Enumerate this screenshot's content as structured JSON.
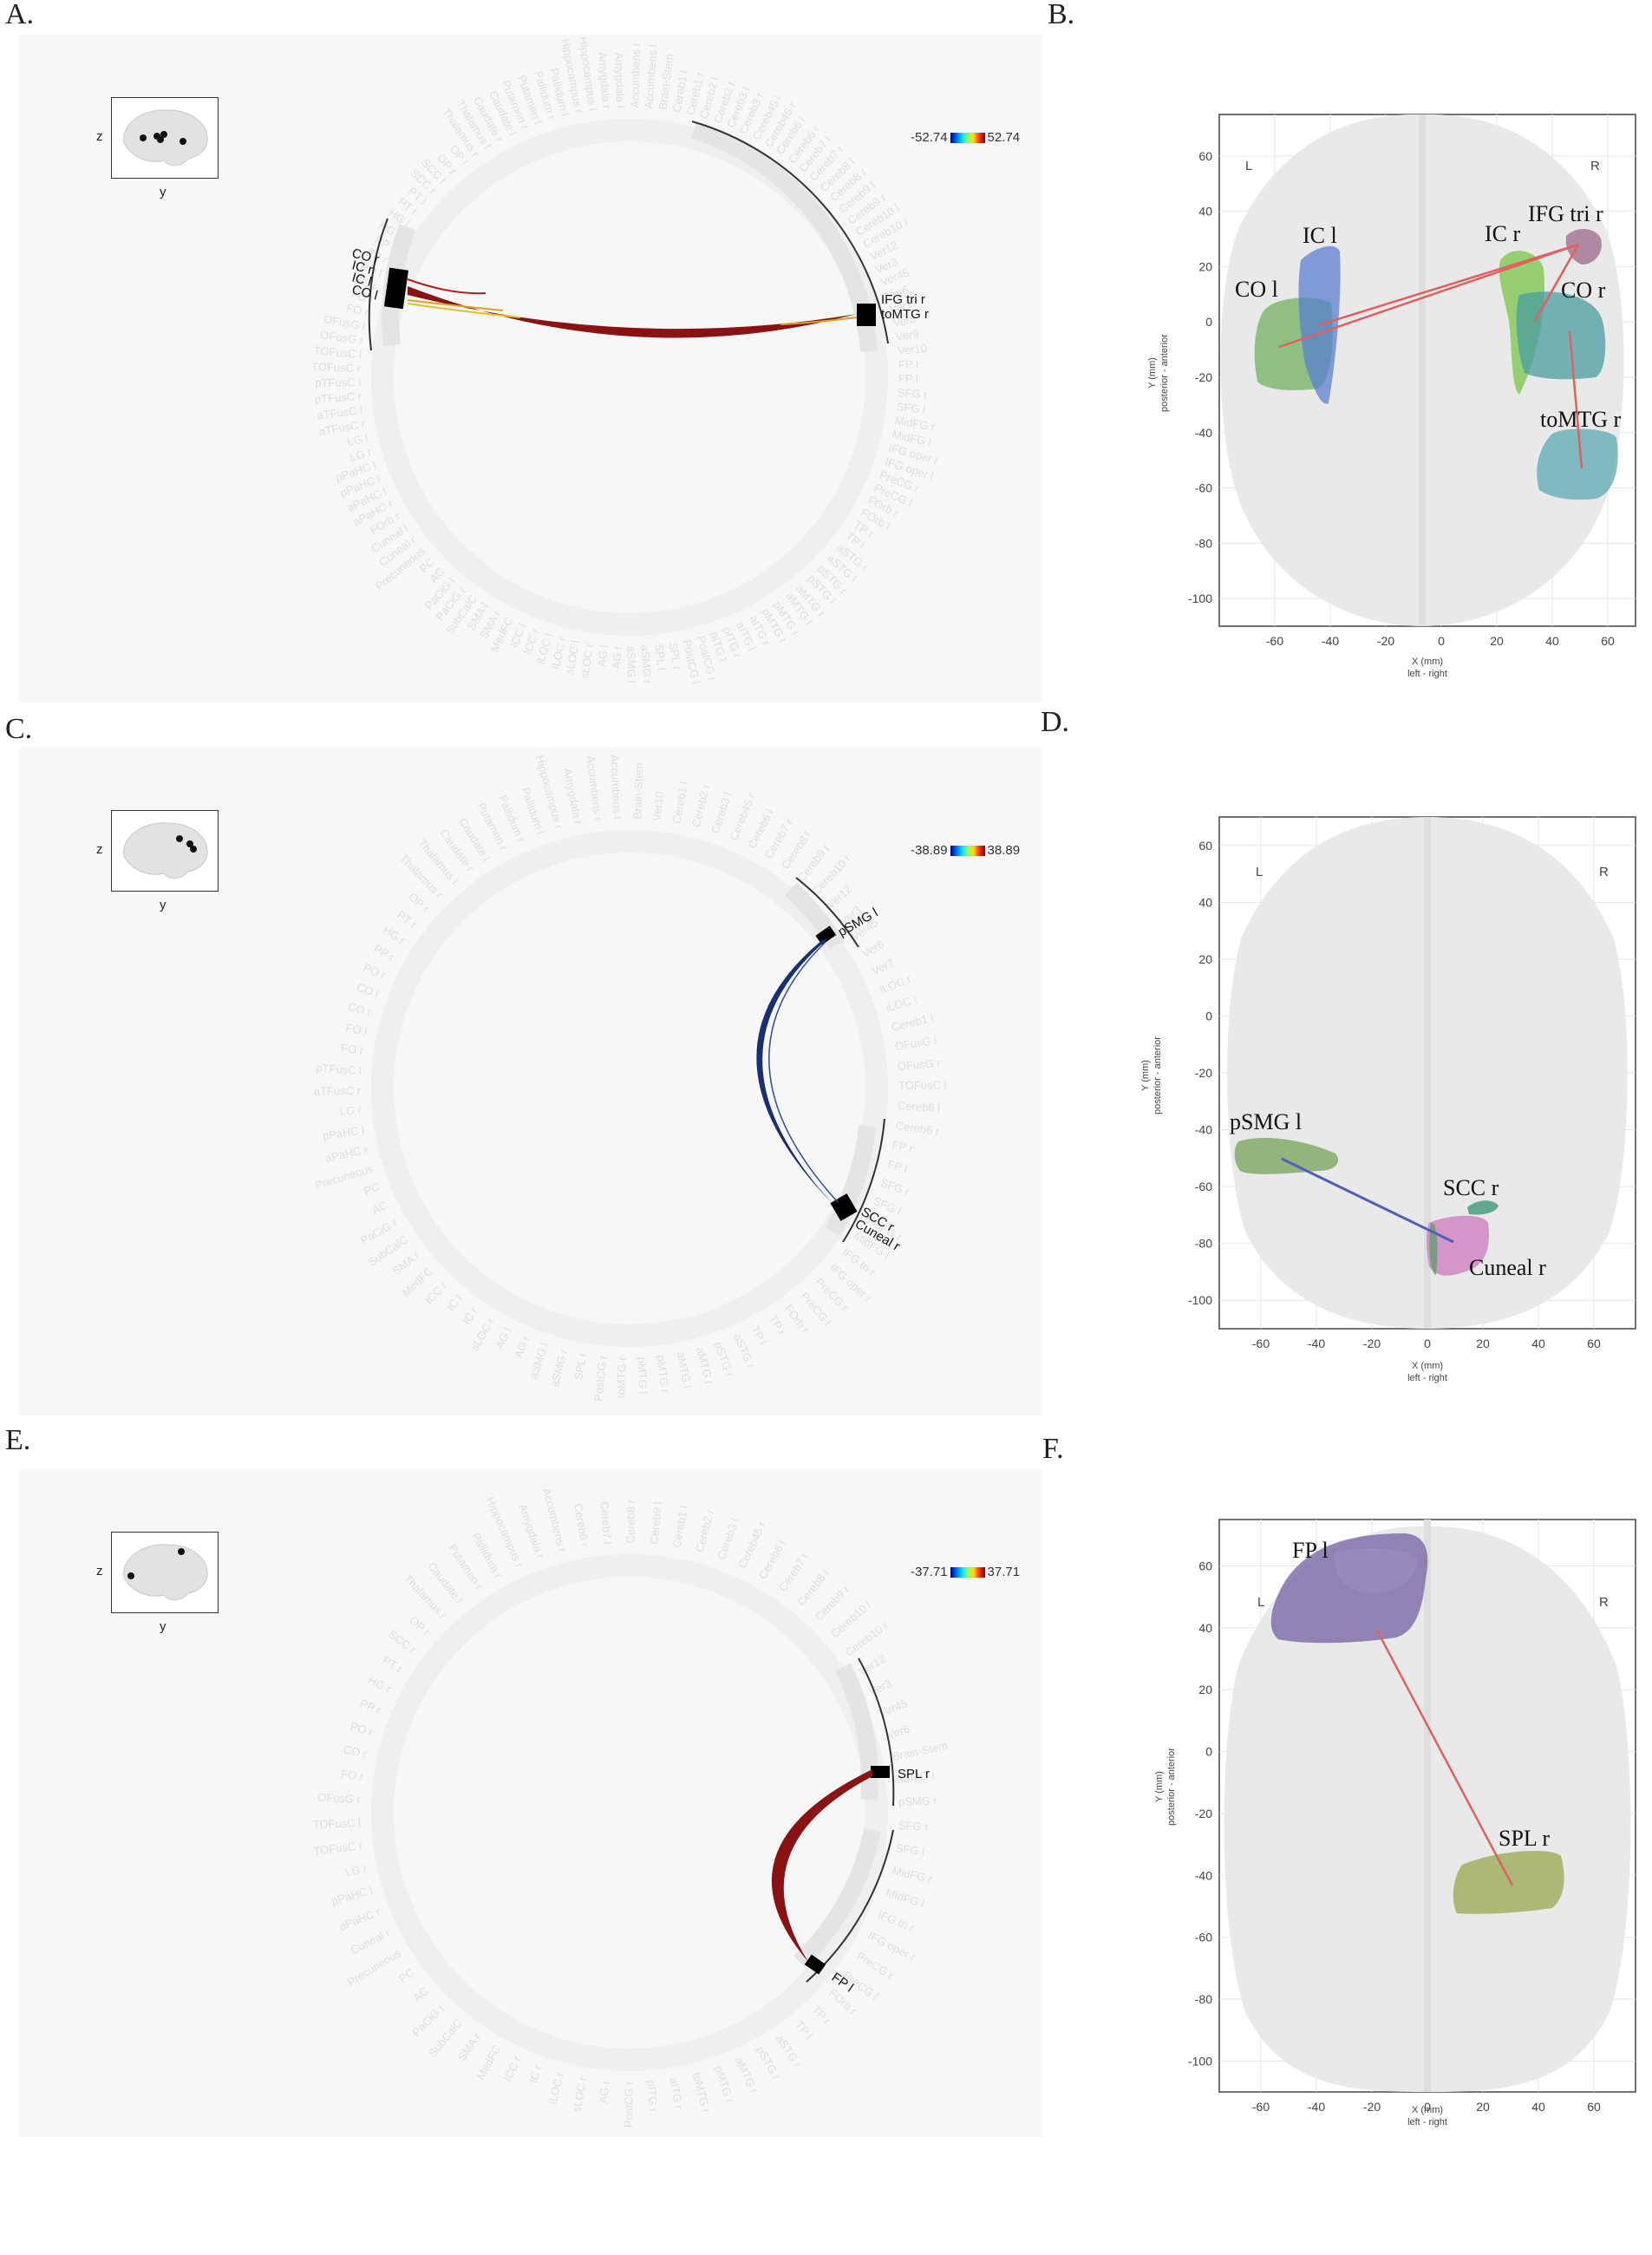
{
  "panels": [
    {
      "id": "A",
      "label": "A.",
      "colorbar": {
        "min": "-52.74",
        "max": "52.74"
      },
      "inset": {
        "z": "z",
        "y": "y"
      },
      "circle_labels_left": [
        "CO r",
        "IC r",
        "IC l",
        "CO l"
      ],
      "circle_labels_right": [
        "IFG tri r",
        "toMTG r"
      ],
      "link_color": "#8b1212",
      "ghost_labels": [
        "Cereb1 l",
        "Cereb1 r",
        "Cereb2 l",
        "Cereb2 r",
        "Cereb3 l",
        "Cereb3 r",
        "Cereb45 l",
        "Cereb45 r",
        "Cereb6 l",
        "Cereb6 r",
        "Cereb7 l",
        "Cereb7 r",
        "Cereb8 l",
        "Cereb8 r",
        "Cereb9 l",
        "Cereb9 r",
        "Cereb10 l",
        "Cereb10 r",
        "Ver12",
        "Ver3",
        "Ver45",
        "Ver6",
        "Ver7",
        "Ver8",
        "Ver9",
        "Ver10",
        "FP r",
        "FP l",
        "SFG r",
        "SFG l",
        "MidFG r",
        "MidFG l",
        "IFG oper r",
        "IFG oper l",
        "PreCG r",
        "PreCG l",
        "FOrb r",
        "FOrb l",
        "TP r",
        "TP l",
        "aSTG r",
        "aSTG l",
        "pSTG r",
        "pSTG l",
        "aMTG r",
        "aMTG l",
        "pMTG r",
        "pMTG l",
        "aITG r",
        "aITG l",
        "pITG r",
        "pITG l",
        "PostCG r",
        "PostCG l",
        "SPL r",
        "SPL l",
        "aSMG r",
        "aSMG l",
        "AG r",
        "AG l",
        "sLOC r",
        "sLOC l",
        "iLOC r",
        "iLOC l",
        "ICC r",
        "ICC l",
        "MedFC",
        "SMA r",
        "SMA l",
        "SubCalC",
        "PaCiG r",
        "PaCiG l",
        "AC",
        "PC",
        "Precuneous",
        "Cuneal r",
        "Cuneal l",
        "FOrb r",
        "aPaHC r",
        "aPaHC l",
        "pPaHC r",
        "pPaHC l",
        "LG r",
        "LG l",
        "aTFusC r",
        "aTFusC l",
        "pTFusC r",
        "pTFusC l",
        "TOFusC r",
        "TOFusC l",
        "OFusG r",
        "OFusG l",
        "FO r",
        "FO l",
        "PO r",
        "PO l",
        "PP r",
        "PP l",
        "HG r",
        "HG l",
        "PT r",
        "PT l",
        "SCC r",
        "SCC l",
        "OP r",
        "OP l",
        "Thalamus r",
        "Thalamus l",
        "Caudate r",
        "Caudate l",
        "Putamen r",
        "Putamen l",
        "Pallidum r",
        "Pallidum l",
        "Hippocampus r",
        "Hippocampus l",
        "Amygdala r",
        "Amygdala l",
        "Accumbens r",
        "Accumbens l",
        "Brain-Stem"
      ],
      "brain_map": {
        "region_labels": [
          "IFG tri r",
          "IC l",
          "IC r",
          "CO l",
          "CO r",
          "toMTG r"
        ],
        "lr_left": "L",
        "lr_right": "R",
        "xlabel": "X (mm)",
        "xlabel2": "left - right",
        "ylabel": "Y (mm)",
        "ylabel2": "posterior - anterior",
        "xticks": [
          "-60",
          "-40",
          "-20",
          "0",
          "20",
          "40",
          "60"
        ],
        "yticks": [
          "60",
          "40",
          "20",
          "0",
          "-20",
          "-40",
          "-60",
          "-80",
          "-100"
        ],
        "link_color": "#e06060"
      }
    },
    {
      "id": "C",
      "label": "C.",
      "colorbar": {
        "min": "-38.89",
        "max": "38.89"
      },
      "inset": {
        "z": "z",
        "y": "y"
      },
      "circle_labels_top": [
        "pSMG l"
      ],
      "circle_labels_bottom": [
        "SCC r",
        "Cuneal r"
      ],
      "link_color": "#1a2f6e",
      "ghost_labels": [
        "Cereb1 l",
        "Cereb2 r",
        "Cereb3 l",
        "Cereb45 r",
        "Cereb6 l",
        "Cereb7 r",
        "Cereb8 l",
        "Cereb9 r",
        "Cereb10 l",
        "Ver12",
        "Ver3",
        "Ver45",
        "Ver6",
        "Ver7",
        "iLOC r",
        "iLOC l",
        "Cereb1 l",
        "OFusG l",
        "OFusG r",
        "TOFusC l",
        "Cereb6 l",
        "Cereb6 r",
        "FP r",
        "FP l",
        "SFG r",
        "SFG l",
        "MidFG r",
        "MidFG l",
        "IFG tri r",
        "IFG oper r",
        "PreCG r",
        "PreCG l",
        "FOrb r",
        "TP r",
        "TP l",
        "aSTG r",
        "pSTG r",
        "aMTG r",
        "aMTG l",
        "pMTG r",
        "pMTG l",
        "toMTG r",
        "PostCG r",
        "SPL r",
        "aSMG r",
        "aSMG l",
        "AG r",
        "AG l",
        "sLOC r",
        "IC r",
        "IC l",
        "ICC r",
        "MedFC",
        "SMA r",
        "SubCalC",
        "PaCiG r",
        "AC",
        "PC",
        "Precuneous",
        "aPaHC r",
        "pPaHC l",
        "LG r",
        "aTFusC r",
        "pTFusC l",
        "FO r",
        "FO l",
        "CO r",
        "CO l",
        "PO r",
        "PP r",
        "HG r",
        "PT r",
        "OP r",
        "Thalamus r",
        "Thalamus l",
        "Caudate r",
        "Caudate l",
        "Putamen r",
        "Pallidum r",
        "Pallidum l",
        "Hippocampus r",
        "Amygdala r",
        "Accumbens r",
        "Accumbens l",
        "Brain-Stem",
        "Ver10"
      ],
      "brain_map": {
        "region_labels": [
          "pSMG l",
          "SCC r",
          "Cuneal r"
        ],
        "lr_left": "L",
        "lr_right": "R",
        "xlabel": "X (mm)",
        "xlabel2": "left - right",
        "ylabel": "Y (mm)",
        "ylabel2": "posterior - anterior",
        "xticks": [
          "-60",
          "-40",
          "-20",
          "0",
          "20",
          "40",
          "60"
        ],
        "yticks": [
          "60",
          "40",
          "20",
          "0",
          "-20",
          "-40",
          "-60",
          "-80",
          "-100"
        ],
        "link_color": "#5060b8"
      }
    },
    {
      "id": "E",
      "label": "E.",
      "colorbar": {
        "min": "-37.71",
        "max": "37.71"
      },
      "inset": {
        "z": "z",
        "y": "y"
      },
      "circle_labels_top": [
        "SPL r"
      ],
      "circle_labels_bottom": [
        "FP l"
      ],
      "link_color": "#8b1212",
      "ghost_labels": [
        "Cereb1 l",
        "Cereb2 r",
        "Cereb3 l",
        "Cereb45 r",
        "Cereb6 l",
        "Cereb7 r",
        "Cereb8 l",
        "Cereb9 r",
        "Cereb10 l",
        "Cereb10 r",
        "Ver12",
        "Ver3",
        "Ver45",
        "Ver6",
        "Brain-Stem",
        "aSMG r",
        "pSMG r",
        "SFG r",
        "SFG l",
        "MidFG r",
        "MidFG l",
        "IFG tri r",
        "IFG oper r",
        "PreCG r",
        "PreCG l",
        "FOrb r",
        "TP r",
        "TP l",
        "aSTG r",
        "pSTG r",
        "aMTG r",
        "pMTG r",
        "toMTG r",
        "aITG r",
        "pITG r",
        "PostCG r",
        "AG r",
        "sLOC r",
        "iLOC r",
        "IC r",
        "ICC r",
        "MedFC",
        "SMA r",
        "SubCalC",
        "PaCiG r",
        "AC",
        "PC",
        "Precuneous",
        "Cuneal r",
        "aPaHC r",
        "pPaHC l",
        "LG r",
        "TOFusC r",
        "TOFusC l",
        "OFusG r",
        "FO r",
        "CO r",
        "PO r",
        "PP r",
        "HG r",
        "PT r",
        "SCC r",
        "OP r",
        "Thalamus r",
        "Caudate r",
        "Putamen r",
        "Pallidum r",
        "Hippocampus r",
        "Amygdala r",
        "Accumbens r",
        "Cereb6 r",
        "Cereb7 l",
        "Cereb8 r",
        "Cereb9 l"
      ],
      "brain_map": {
        "region_labels": [
          "FP l",
          "SPL r"
        ],
        "lr_left": "L",
        "lr_right": "R",
        "xlabel": "X (mm)",
        "xlabel2": "left - right",
        "ylabel": "Y (mm)",
        "ylabel2": "posterior - anterior",
        "xticks": [
          "-60",
          "-40",
          "-20",
          "0",
          "20",
          "40",
          "60"
        ],
        "yticks": [
          "60",
          "40",
          "20",
          "0",
          "-20",
          "-40",
          "-60",
          "-80",
          "-100"
        ],
        "link_color": "#e06060"
      }
    }
  ],
  "map_labels": {
    "B": "B.",
    "D": "D.",
    "F": "F."
  }
}
